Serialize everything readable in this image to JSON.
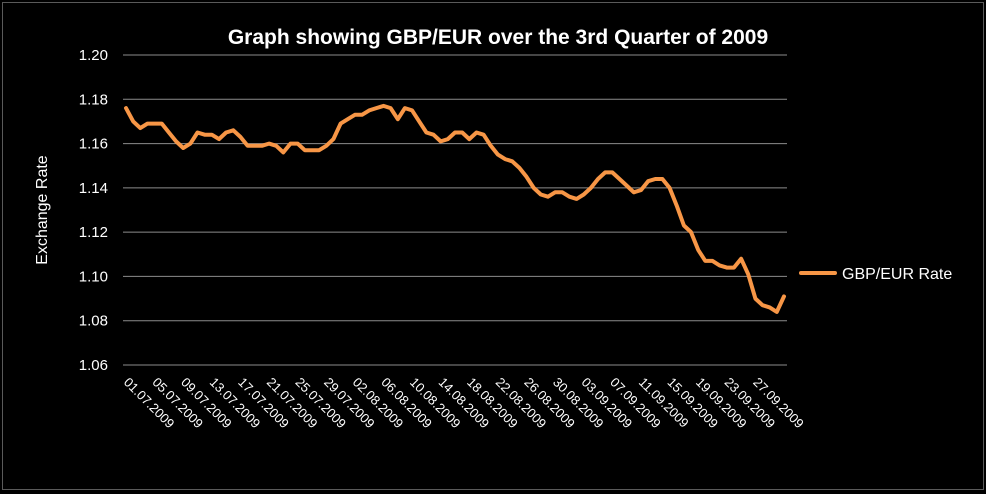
{
  "chart_data": {
    "type": "line",
    "title": "Graph showing GBP/EUR over the 3rd Quarter of 2009",
    "xlabel": "",
    "ylabel": "Exchange Rate",
    "ylim": [
      1.06,
      1.2
    ],
    "yticks": [
      "1.06",
      "1.08",
      "1.10",
      "1.12",
      "1.14",
      "1.16",
      "1.18",
      "1.20"
    ],
    "grid": "horizontal",
    "legend": "right",
    "color": "#f79646",
    "x_tick_labels": [
      "01.07.2009",
      "05.07.2009",
      "09.07.2009",
      "13.07.2009",
      "17.07.2009",
      "21.07.2009",
      "25.07.2009",
      "29.07.2009",
      "02.08.2009",
      "06.08.2009",
      "10.08.2009",
      "14.08.2009",
      "18.08.2009",
      "22.08.2009",
      "26.08.2009",
      "30.08.2009",
      "03.09.2009",
      "07.09.2009",
      "11.09.2009",
      "15.09.2009",
      "19.09.2009",
      "23.09.2009",
      "27.09.2009"
    ],
    "series": [
      {
        "name": "GBP/EUR Rate",
        "values": [
          1.176,
          1.17,
          1.167,
          1.169,
          1.169,
          1.169,
          1.165,
          1.161,
          1.158,
          1.16,
          1.165,
          1.164,
          1.164,
          1.162,
          1.165,
          1.166,
          1.163,
          1.159,
          1.159,
          1.159,
          1.16,
          1.159,
          1.156,
          1.16,
          1.16,
          1.157,
          1.157,
          1.157,
          1.159,
          1.162,
          1.169,
          1.171,
          1.173,
          1.173,
          1.175,
          1.176,
          1.177,
          1.176,
          1.171,
          1.176,
          1.175,
          1.17,
          1.165,
          1.164,
          1.161,
          1.162,
          1.165,
          1.165,
          1.162,
          1.165,
          1.164,
          1.159,
          1.155,
          1.153,
          1.152,
          1.149,
          1.145,
          1.14,
          1.137,
          1.136,
          1.138,
          1.138,
          1.136,
          1.135,
          1.137,
          1.14,
          1.144,
          1.147,
          1.147,
          1.144,
          1.141,
          1.138,
          1.139,
          1.143,
          1.144,
          1.144,
          1.14,
          1.132,
          1.123,
          1.12,
          1.112,
          1.107,
          1.107,
          1.105,
          1.104,
          1.104,
          1.108,
          1.101,
          1.09,
          1.087,
          1.086,
          1.084,
          1.091
        ]
      }
    ]
  }
}
